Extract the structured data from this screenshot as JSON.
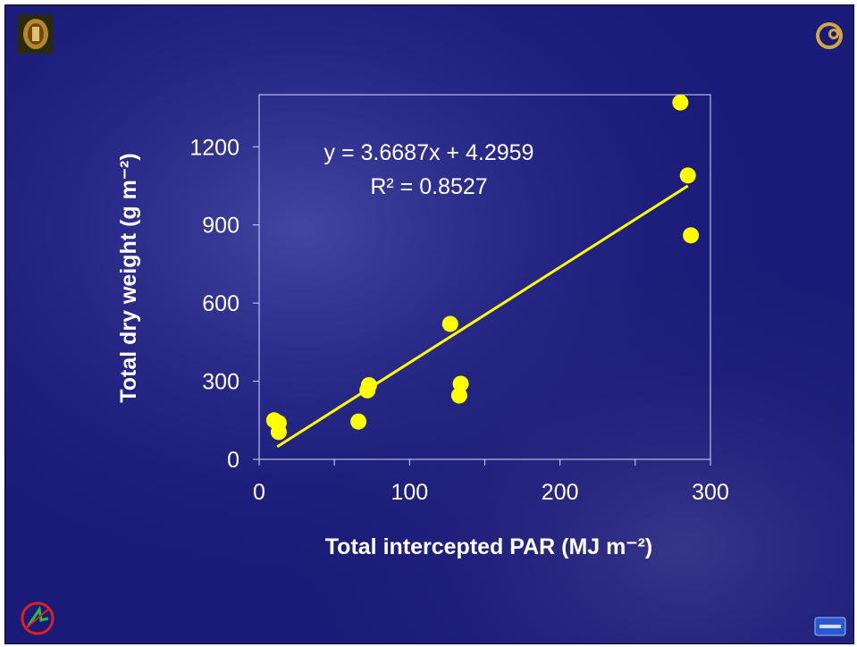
{
  "colors": {
    "background": "#1a1a78",
    "points": "#ffff00",
    "trendline": "#ffff00",
    "axis": "#d8d8ff",
    "text": "#ffffff"
  },
  "icons": {
    "top_left": "university-crest-logo",
    "top_right": "gold-emblem-logo",
    "bottom_left": "red-circle-logo",
    "bottom_right": "blue-badge-logo"
  },
  "chart_data": {
    "type": "scatter",
    "xlabel": "Total intercepted PAR (MJ m⁻²)",
    "ylabel": "Total dry weight (g m⁻²)",
    "xlim": [
      0,
      300
    ],
    "ylim": [
      0,
      1400
    ],
    "xticks": [
      0,
      100,
      200,
      300
    ],
    "yticks": [
      0,
      300,
      600,
      900,
      1200
    ],
    "grid": false,
    "points": [
      {
        "x": 10,
        "y": 150
      },
      {
        "x": 13,
        "y": 140
      },
      {
        "x": 13,
        "y": 105
      },
      {
        "x": 66,
        "y": 145
      },
      {
        "x": 72,
        "y": 265
      },
      {
        "x": 73,
        "y": 285
      },
      {
        "x": 127,
        "y": 520
      },
      {
        "x": 133,
        "y": 245
      },
      {
        "x": 134,
        "y": 290
      },
      {
        "x": 280,
        "y": 1370
      },
      {
        "x": 285,
        "y": 1090
      },
      {
        "x": 287,
        "y": 860
      }
    ],
    "trendline": {
      "slope": 3.6687,
      "intercept": 4.2959,
      "x_range": [
        12,
        285
      ]
    },
    "annotations": {
      "equation": "y = 3.6687x + 4.2959",
      "r_squared": "R² = 0.8527"
    }
  }
}
